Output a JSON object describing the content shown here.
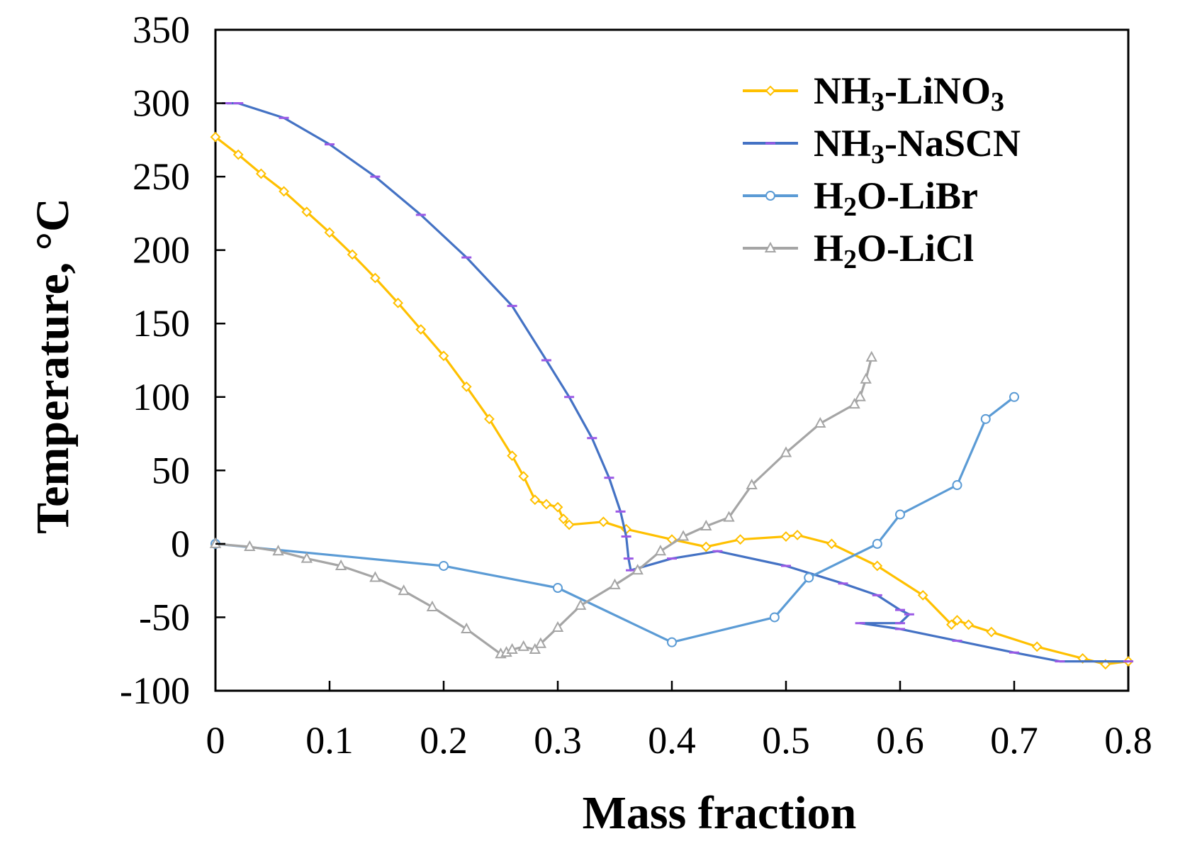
{
  "chart_data": {
    "type": "line",
    "xlabel": "Mass fraction",
    "ylabel": "Temperature, °C",
    "xlim": [
      0,
      0.8
    ],
    "ylim": [
      -100,
      350
    ],
    "xticks": [
      "0",
      "0.1",
      "0.2",
      "0.3",
      "0.4",
      "0.5",
      "0.6",
      "0.7",
      "0.8"
    ],
    "yticks": [
      "-100",
      "-50",
      "0",
      "50",
      "100",
      "150",
      "200",
      "250",
      "300",
      "350"
    ],
    "grid": false,
    "legend": "top-right",
    "series": [
      {
        "name": "NH3-LiNO3",
        "label_parts": [
          [
            "NH",
            false
          ],
          [
            "3",
            true
          ],
          [
            "-LiNO",
            false
          ],
          [
            "3",
            true
          ]
        ],
        "color": "#FFC000",
        "marker": "diamond",
        "x": [
          0,
          0.02,
          0.04,
          0.06,
          0.08,
          0.1,
          0.12,
          0.14,
          0.16,
          0.18,
          0.2,
          0.22,
          0.24,
          0.26,
          0.27,
          0.28,
          0.29,
          0.3,
          0.305,
          0.31,
          0.34,
          0.36,
          0.4,
          0.43,
          0.46,
          0.5,
          0.51,
          0.54,
          0.58,
          0.62,
          0.645,
          0.65,
          0.66,
          0.68,
          0.72,
          0.76,
          0.78,
          0.8
        ],
        "y": [
          277,
          265,
          252,
          240,
          226,
          212,
          197,
          181,
          164,
          146,
          128,
          107,
          85,
          60,
          46,
          30,
          27,
          25,
          17,
          13,
          15,
          10,
          3,
          -2,
          3,
          5,
          6,
          0,
          -15,
          -35,
          -55,
          -52,
          -55,
          -60,
          -70,
          -78,
          -82,
          -80
        ]
      },
      {
        "name": "NH3-NaSCN",
        "label_parts": [
          [
            "NH",
            false
          ],
          [
            "3",
            true
          ],
          [
            "-NaSCN",
            false
          ]
        ],
        "color": "#4472C4",
        "marker": "dash",
        "x": [
          0.01,
          0.02,
          0.06,
          0.1,
          0.14,
          0.18,
          0.22,
          0.26,
          0.29,
          0.31,
          0.33,
          0.345,
          0.355,
          0.36,
          0.362,
          0.364,
          0.4,
          0.44,
          0.5,
          0.55,
          0.58,
          0.6,
          0.608,
          0.6,
          0.565,
          0.6,
          0.65,
          0.7,
          0.74,
          0.8
        ],
        "y": [
          300,
          300,
          290,
          272,
          250,
          224,
          195,
          162,
          125,
          100,
          72,
          45,
          22,
          5,
          -10,
          -18,
          -10,
          -5,
          -15,
          -27,
          -35,
          -45,
          -48,
          -54,
          -54,
          -58,
          -66,
          -74,
          -80,
          -80
        ]
      },
      {
        "name": "H2O-LiBr",
        "label_parts": [
          [
            "H",
            false
          ],
          [
            "2",
            true
          ],
          [
            "O-LiBr",
            false
          ]
        ],
        "color": "#5B9BD5",
        "marker": "circle",
        "x": [
          0,
          0.2,
          0.3,
          0.4,
          0.49,
          0.52,
          0.58,
          0.6,
          0.65,
          0.675,
          0.7
        ],
        "y": [
          0,
          -15,
          -30,
          -67,
          -50,
          -23,
          0,
          20,
          40,
          85,
          100
        ]
      },
      {
        "name": "H2O-LiCl",
        "label_parts": [
          [
            "H",
            false
          ],
          [
            "2",
            true
          ],
          [
            "O-LiCl",
            false
          ]
        ],
        "color": "#A5A5A5",
        "marker": "triangle",
        "x": [
          0,
          0.03,
          0.055,
          0.08,
          0.11,
          0.14,
          0.165,
          0.19,
          0.22,
          0.25,
          0.255,
          0.26,
          0.27,
          0.28,
          0.285,
          0.3,
          0.32,
          0.35,
          0.37,
          0.39,
          0.41,
          0.43,
          0.45,
          0.47,
          0.5,
          0.53,
          0.56,
          0.565,
          0.57,
          0.575
        ],
        "y": [
          0,
          -2,
          -5,
          -10,
          -15,
          -23,
          -32,
          -43,
          -58,
          -75,
          -74,
          -72,
          -70,
          -72,
          -68,
          -57,
          -42,
          -28,
          -18,
          -5,
          5,
          12,
          18,
          40,
          62,
          82,
          95,
          100,
          112,
          127
        ]
      }
    ]
  }
}
